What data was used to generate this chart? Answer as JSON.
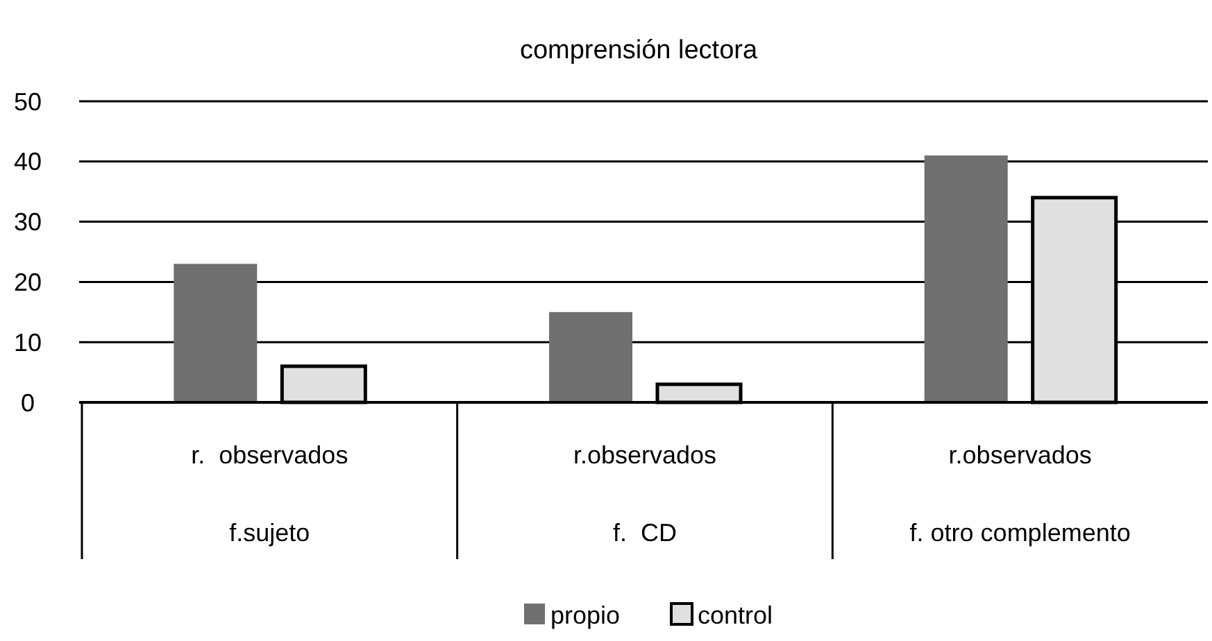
{
  "chart_data": {
    "type": "bar",
    "title": "comprensión lectora",
    "categories": [
      "r.  observados\nf.sujeto",
      "r.observados\nf.  CD",
      "r.observados\nf. otro complemento"
    ],
    "series": [
      {
        "name": "propio",
        "color": "#707070",
        "values": [
          23,
          15,
          41
        ]
      },
      {
        "name": "control",
        "color": "#e0e0e0",
        "values": [
          6,
          3,
          34
        ]
      }
    ],
    "ylim": [
      0,
      50
    ],
    "yticks": [
      0,
      10,
      20,
      30,
      40,
      50
    ],
    "grid": "y",
    "legend": "bottom"
  }
}
